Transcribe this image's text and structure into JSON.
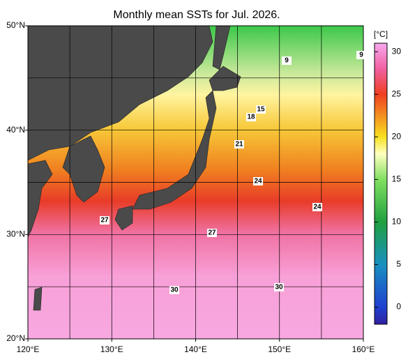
{
  "title": "Monthly mean SSTs for Jul. 2026.",
  "map": {
    "lon_range": [
      120,
      160
    ],
    "lat_range": [
      20,
      50
    ],
    "lon_ticks": [
      {
        "value": 120,
        "label": "120°E"
      },
      {
        "value": 130,
        "label": "130°E"
      },
      {
        "value": 140,
        "label": "140°E"
      },
      {
        "value": 150,
        "label": "150°E"
      },
      {
        "value": 160,
        "label": "160°E"
      }
    ],
    "lat_ticks": [
      {
        "value": 20,
        "label": "20°N"
      },
      {
        "value": 30,
        "label": "30°N"
      },
      {
        "value": 40,
        "label": "40°N"
      },
      {
        "value": 50,
        "label": "50°N"
      }
    ]
  },
  "colorbar": {
    "unit": "[°C]",
    "range": [
      -2,
      31
    ],
    "ticks": [
      0,
      5,
      10,
      15,
      20,
      25,
      30
    ]
  },
  "contour_labels": [
    "9",
    "9",
    "15",
    "18",
    "21",
    "24",
    "24",
    "27",
    "27",
    "30",
    "30"
  ]
}
